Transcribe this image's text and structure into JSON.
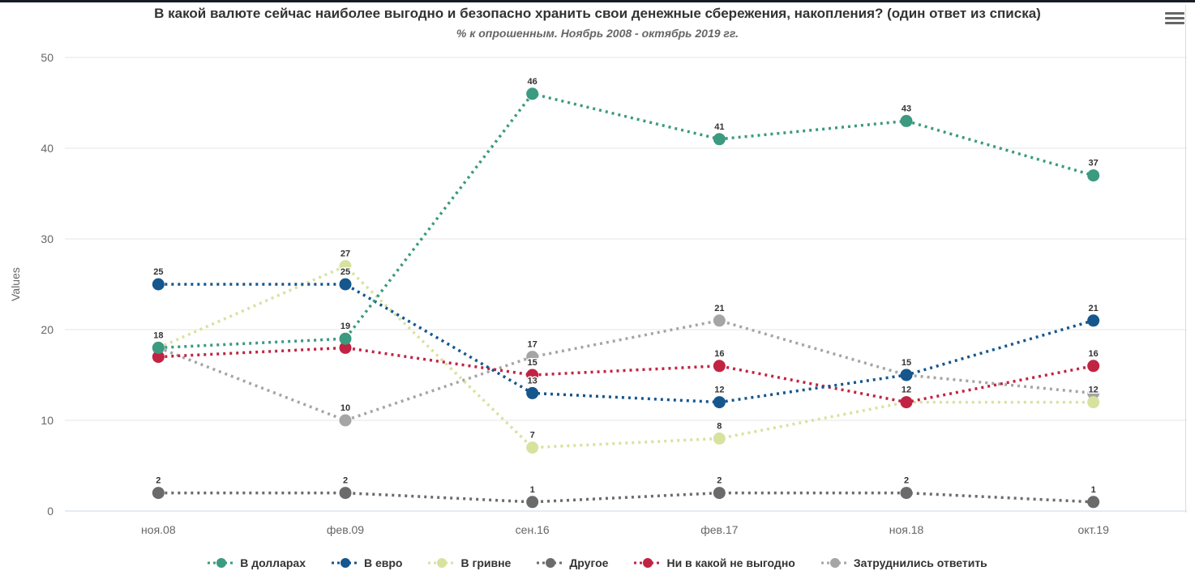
{
  "header": {
    "title": "В какой валюте сейчас наиболее выгодно и безопасно хранить свои денежные сбережения, накопления? (один ответ из списка)",
    "subtitle": "% к опрошенным. Ноябрь 2008 - октябрь 2019 гг.",
    "menu_icon": "hamburger-icon"
  },
  "chart_data": {
    "type": "line",
    "dash_style": "dot",
    "title": "В какой валюте сейчас наиболее выгодно и безопасно хранить свои денежные сбережения, накопления? (один ответ из списка)",
    "subtitle": "% к опрошенным. Ноябрь 2008 - октябрь 2019 гг.",
    "categories": [
      "ноя.08",
      "фев.09",
      "сен.16",
      "фев.17",
      "ноя.18",
      "окт.19"
    ],
    "series": [
      {
        "name": "В долларах",
        "color": "#3b9a80",
        "values": [
          18,
          19,
          46,
          41,
          43,
          37
        ]
      },
      {
        "name": "В евро",
        "color": "#15568d",
        "values": [
          25,
          25,
          13,
          12,
          15,
          21
        ]
      },
      {
        "name": "В гривне",
        "color": "#d8e29f",
        "values": [
          18,
          27,
          7,
          8,
          12,
          12
        ]
      },
      {
        "name": "Другое",
        "color": "#6b6b6b",
        "values": [
          2,
          2,
          1,
          2,
          2,
          1
        ]
      },
      {
        "name": "Ни в какой не выгодно",
        "color": "#c02442",
        "values": [
          17,
          18,
          15,
          16,
          12,
          16
        ]
      },
      {
        "name": "Затруднились ответить",
        "color": "#a5a5a5",
        "values": [
          18,
          10,
          17,
          21,
          15,
          13
        ]
      }
    ],
    "xlabel": "",
    "ylabel": "Values",
    "ylim": [
      0,
      50
    ],
    "yticks": [
      0,
      10,
      20,
      30,
      40,
      50
    ],
    "grid": true,
    "legend_position": "bottom",
    "hidden_labels": [
      [
        2,
        0
      ],
      [
        4,
        0
      ],
      [
        5,
        0
      ],
      [
        4,
        1
      ],
      [
        2,
        4
      ],
      [
        5,
        4
      ],
      [
        5,
        5
      ]
    ],
    "colors": {
      "title_text": "#333333",
      "subtitle_text": "#666666",
      "axis_text": "#666666",
      "gridline": "#e6e6e6",
      "axis_line": "#ccd6eb",
      "data_label_text": "#333333"
    }
  }
}
